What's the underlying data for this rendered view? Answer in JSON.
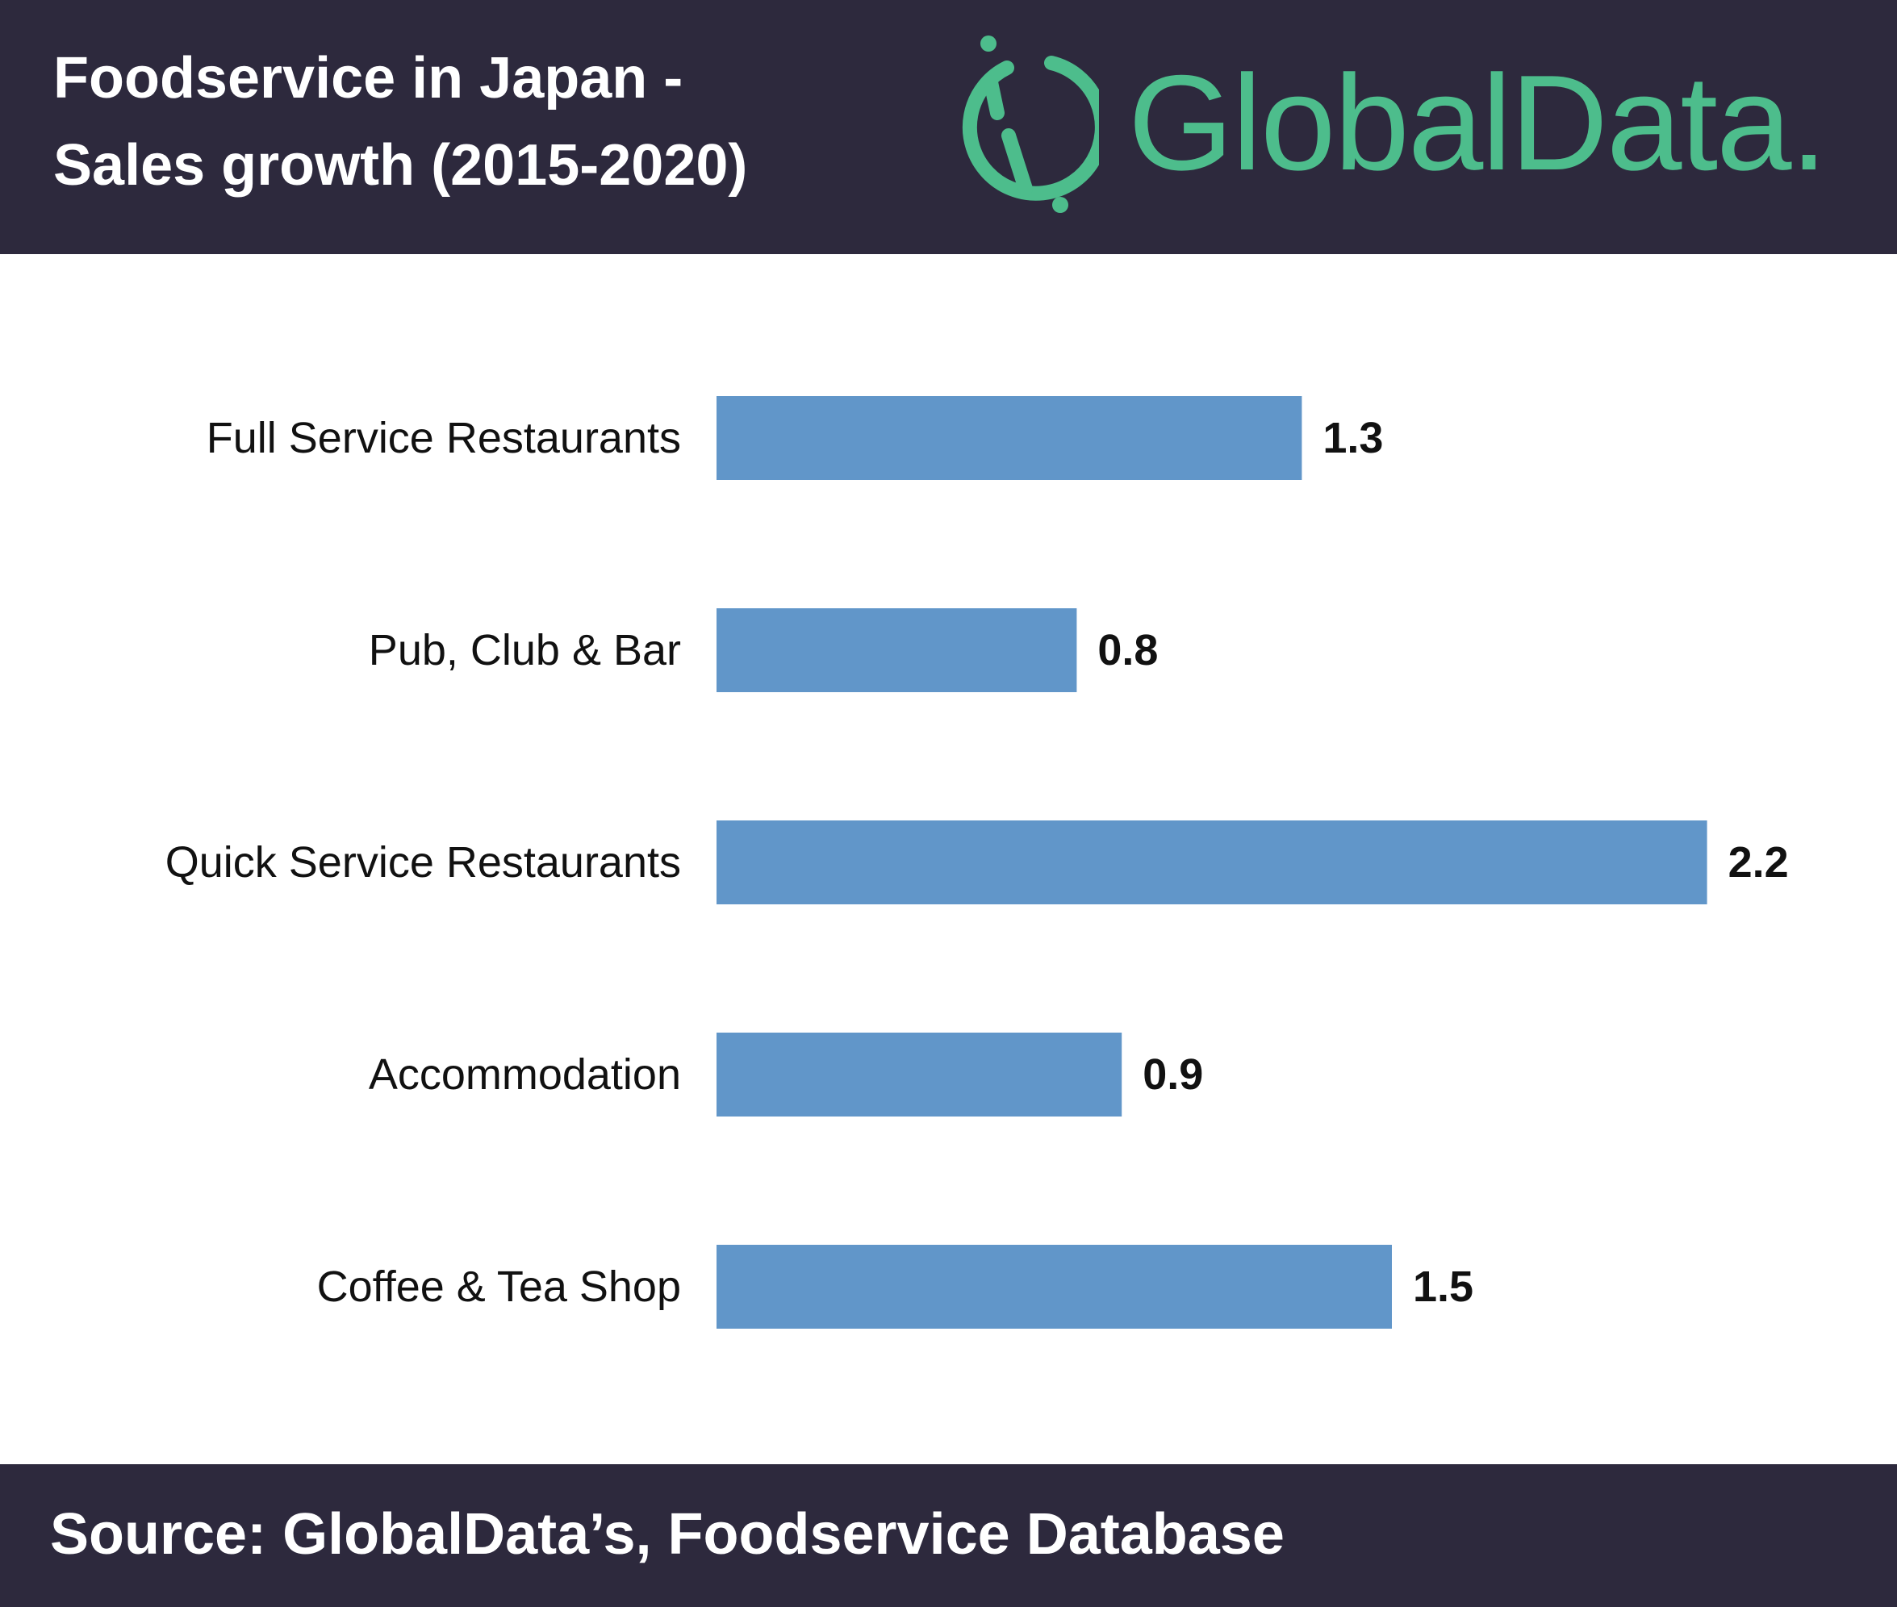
{
  "header": {
    "title_line1": "Foodservice in Japan -",
    "title_line2": "Sales growth (2015-2020)",
    "logo_text": "GlobalData.",
    "background_color": "#2d293d",
    "logo_color": "#4dbd8c",
    "logo_icon": "globaldata-logo-icon"
  },
  "chart_data": {
    "type": "bar",
    "orientation": "horizontal",
    "categories": [
      "Full Service Restaurants",
      "Pub, Club & Bar",
      "Quick Service Restaurants",
      "Accommodation",
      "Coffee & Tea Shop"
    ],
    "values": [
      1.3,
      0.8,
      2.2,
      0.9,
      1.5
    ],
    "data_labels": [
      "1.3",
      "0.8",
      "2.2",
      "0.9",
      "1.5"
    ],
    "title": "",
    "xlabel": "",
    "ylabel": "",
    "xlim": [
      0,
      2.2
    ],
    "grid": false,
    "legend": "none",
    "bar_color": "#6196c9"
  },
  "footer": {
    "source_text": "Source: GlobalData’s, Foodservice Database",
    "background_color": "#2d293d"
  }
}
